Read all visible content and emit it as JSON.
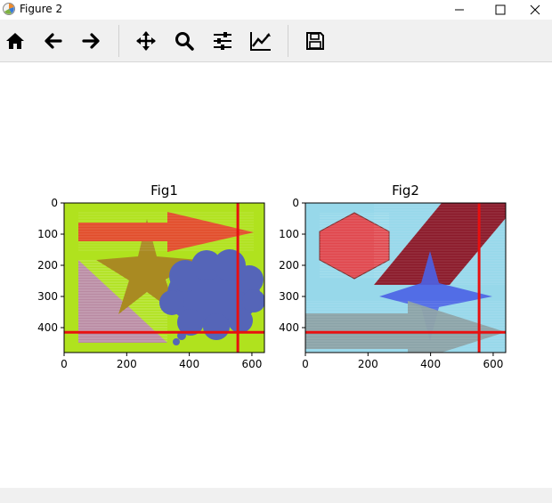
{
  "window": {
    "title": "Figure 2"
  },
  "toolbar": {
    "tools": [
      {
        "name": "home-icon"
      },
      {
        "name": "back-arrow-icon"
      },
      {
        "name": "forward-arrow-icon"
      },
      {
        "name": "pan-move-icon"
      },
      {
        "name": "zoom-magnifier-icon"
      },
      {
        "name": "configure-subplots-icon"
      },
      {
        "name": "edit-axis-curve-icon"
      },
      {
        "name": "save-floppy-icon"
      }
    ]
  },
  "chart_data": [
    {
      "type": "image",
      "title": "Fig1",
      "xlim": [
        0,
        640
      ],
      "ylim": [
        480,
        0
      ],
      "xticks": [
        "0",
        "200",
        "400",
        "600"
      ],
      "yticks": [
        "0",
        "100",
        "200",
        "300",
        "400"
      ],
      "background_color": "#b0e21e",
      "crosshair": {
        "x": 555,
        "y": 415,
        "color": "#e81010"
      }
    },
    {
      "type": "image",
      "title": "Fig2",
      "xlim": [
        0,
        640
      ],
      "ylim": [
        480,
        0
      ],
      "xticks": [
        "0",
        "200",
        "400",
        "600"
      ],
      "yticks": [
        "0",
        "100",
        "200",
        "300",
        "400"
      ],
      "background_color": "#97d8ea",
      "crosshair": {
        "x": 555,
        "y": 415,
        "color": "#e81010"
      }
    }
  ]
}
